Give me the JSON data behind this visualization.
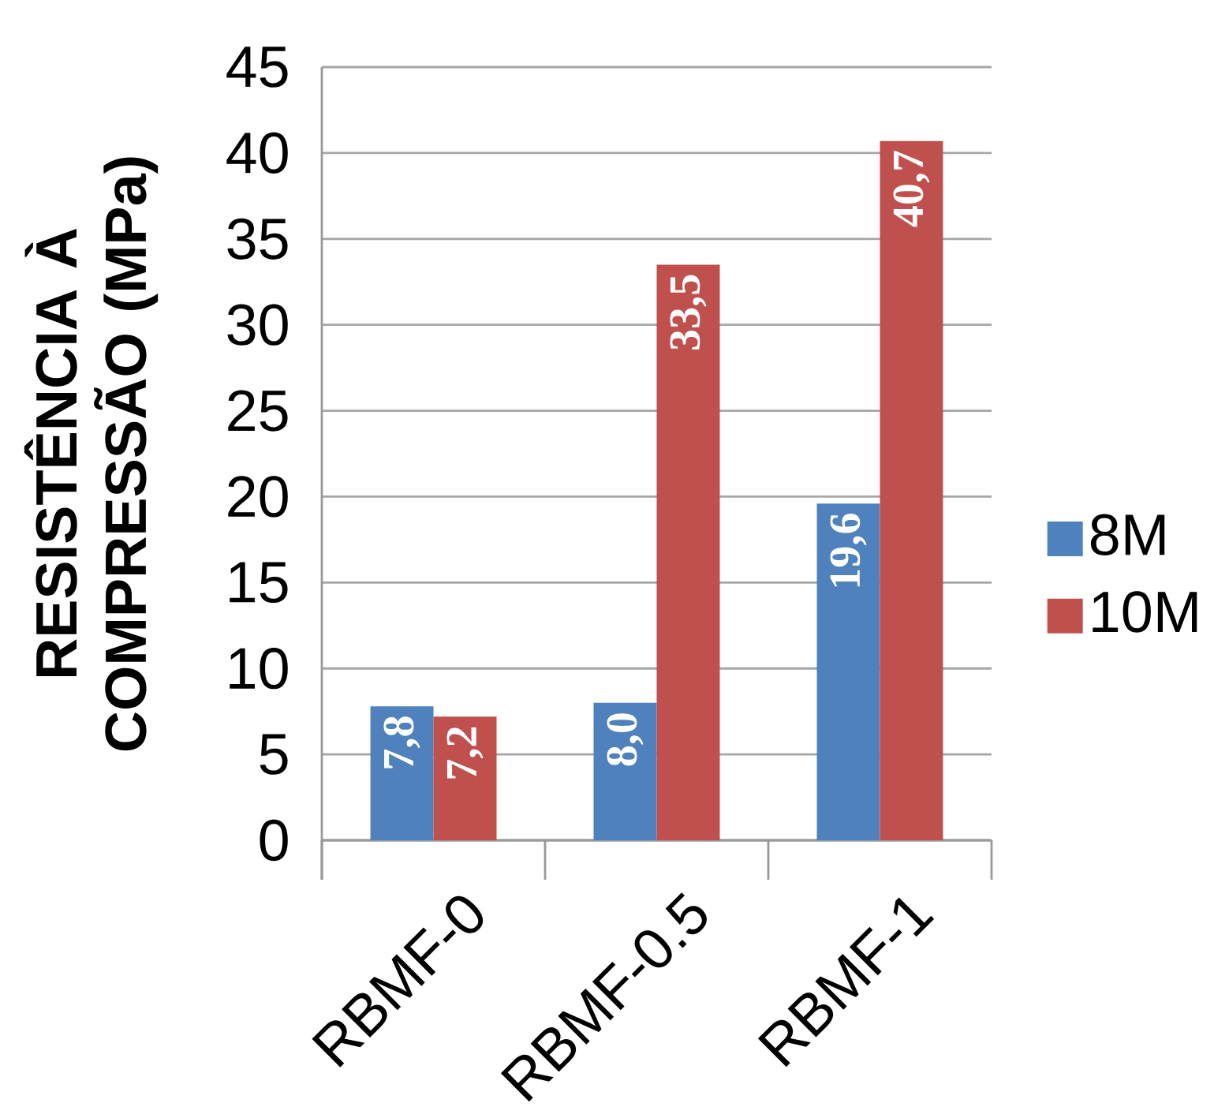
{
  "chart_data": {
    "type": "bar",
    "ylabel": "RESISTÊNCIA À COMPRESSÃO (MPa)",
    "categories": [
      "RBMF-0",
      "RBMF-0.5",
      "RBMF-1"
    ],
    "series": [
      {
        "name": "8M",
        "color": "#4f81bd",
        "values": [
          7.8,
          8.0,
          19.6
        ],
        "value_labels": [
          "7,8",
          "8,0",
          "19,6"
        ]
      },
      {
        "name": "10M",
        "color": "#c0504d",
        "values": [
          7.2,
          33.5,
          40.7
        ],
        "value_labels": [
          "7,2",
          "33,5",
          "40,7"
        ]
      }
    ],
    "ylim": [
      0,
      45
    ],
    "yticks": [
      0,
      5,
      10,
      15,
      20,
      25,
      30,
      35,
      40,
      45
    ],
    "grid": "y",
    "legend": "right"
  }
}
